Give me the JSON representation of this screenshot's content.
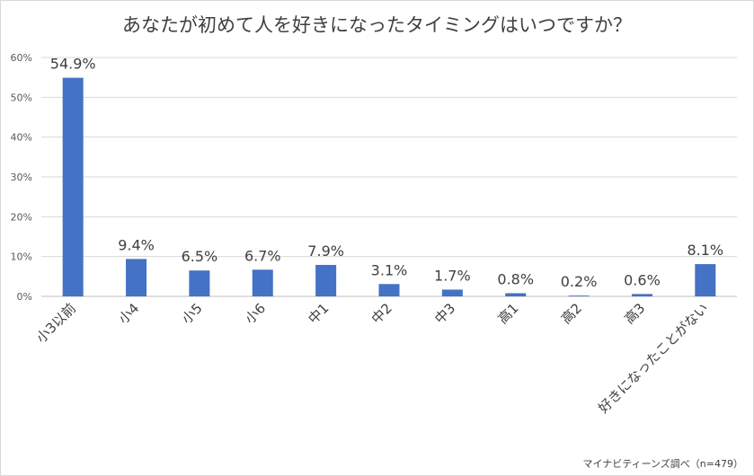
{
  "chart_data": {
    "type": "bar",
    "title": "あなたが初めて人を好きになったタイミングはいつですか？",
    "categories": [
      "小3以前",
      "小4",
      "小5",
      "小6",
      "中1",
      "中2",
      "中3",
      "高1",
      "高2",
      "高3",
      "好きになったことがない"
    ],
    "values": [
      54.9,
      9.4,
      6.5,
      6.7,
      7.9,
      3.1,
      1.7,
      0.8,
      0.2,
      0.6,
      8.1
    ],
    "data_labels": [
      "54.9%",
      "9.4%",
      "6.5%",
      "6.7%",
      "7.9%",
      "3.1%",
      "1.7%",
      "0.8%",
      "0.2%",
      "0.6%",
      "8.1%"
    ],
    "y_ticks": [
      "0%",
      "10%",
      "20%",
      "30%",
      "40%",
      "50%",
      "60%"
    ],
    "ylim": [
      0,
      60
    ],
    "grid": true,
    "legend": "none",
    "bar_color": "#4472c4",
    "xlabel": "",
    "ylabel": ""
  },
  "source_note": "マイナビティーンズ調べ（n=479）"
}
